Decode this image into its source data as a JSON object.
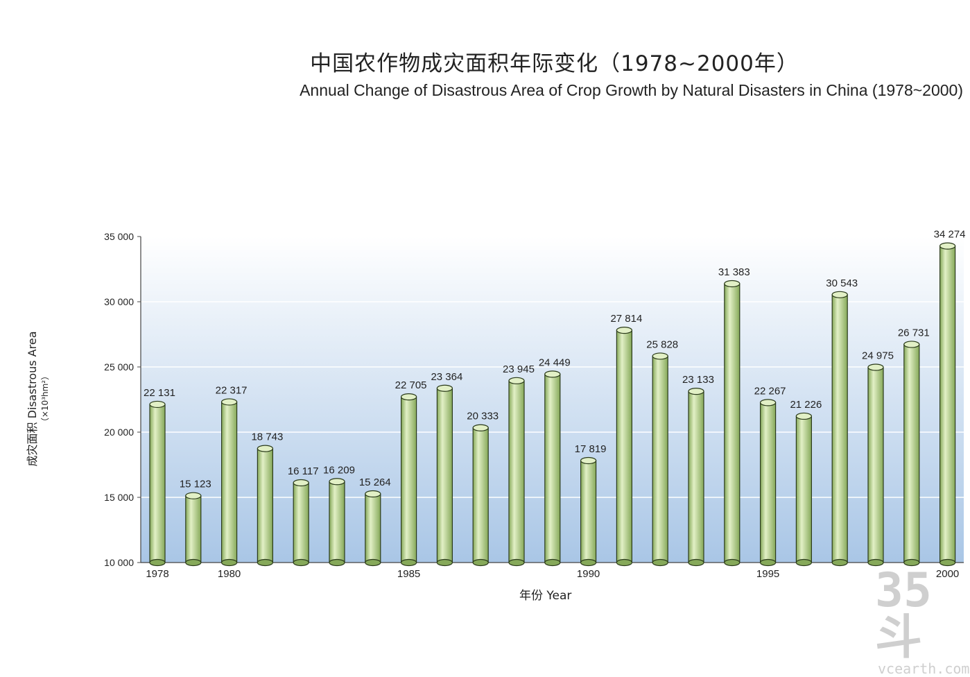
{
  "colors": {
    "bar_fill_light": "#e2f0c6",
    "bar_fill_dark": "#86a95a",
    "bar_stroke": "#2a3a1a",
    "plot_bg_top": "#ffffff",
    "plot_bg_bottom": "#a9c6e6",
    "watermark": "#cfcfcf"
  },
  "watermark": {
    "big": "35斗",
    "small": "vcearth.com"
  },
  "chart_data": {
    "type": "bar",
    "title": "中国农作物成灾面积年际变化（1978~2000年）",
    "subtitle": "Annual Change of Disastrous Area of Crop Growth by Natural Disasters in China (1978~2000)",
    "ylabel": "成灾面积 Disastrous  Area",
    "yunit": "（×10³hm²）",
    "xlabel": "年份   Year",
    "ylim": [
      10000,
      35000
    ],
    "yticks": [
      10000,
      15000,
      20000,
      25000,
      30000,
      35000
    ],
    "ytick_labels": [
      "10 000",
      "15 000",
      "20 000",
      "25 000",
      "30 000",
      "35 000"
    ],
    "xticks_shown": [
      "1978",
      "1980",
      "1985",
      "1990",
      "1995",
      "2000"
    ],
    "categories": [
      "1978",
      "1979",
      "1980",
      "1981",
      "1982",
      "1983",
      "1984",
      "1985",
      "1986",
      "1987",
      "1988",
      "1989",
      "1990",
      "1991",
      "1992",
      "1993",
      "1994",
      "1995",
      "1996",
      "1997",
      "1998",
      "1999",
      "2000"
    ],
    "values": [
      22131,
      15123,
      22317,
      18743,
      16117,
      16209,
      15264,
      22705,
      23364,
      20333,
      23945,
      24449,
      17819,
      27814,
      25828,
      23133,
      31383,
      22267,
      21226,
      30543,
      24975,
      26731,
      34274
    ],
    "data_labels": [
      "22 131",
      "15 123",
      "22 317",
      "18 743",
      "16 117",
      "16 209",
      "15 264",
      "22 705",
      "23 364",
      "20 333",
      "23 945",
      "24 449",
      "17 819",
      "27 814",
      "25 828",
      "23 133",
      "31 383",
      "22 267",
      "21 226",
      "30 543",
      "24 975",
      "26 731",
      "34 274"
    ],
    "grid": true,
    "legend": "none"
  }
}
